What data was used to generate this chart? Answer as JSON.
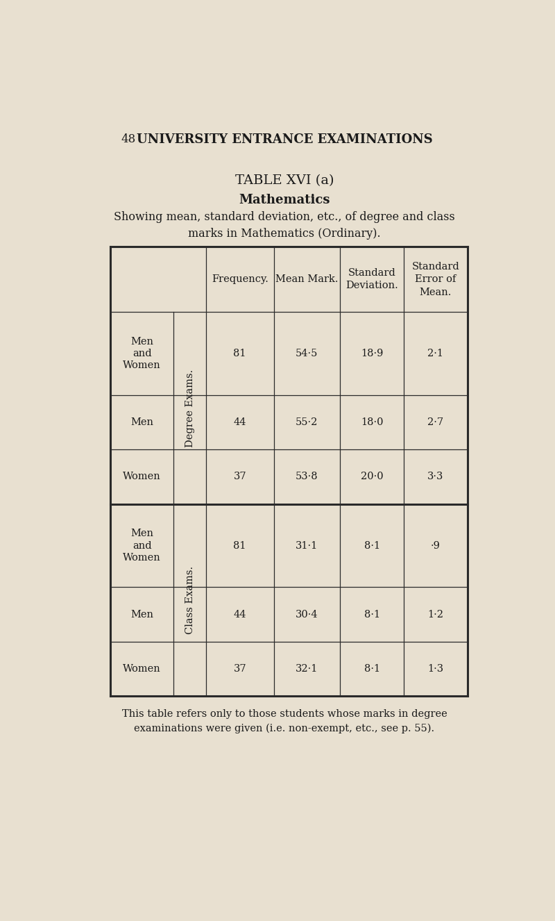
{
  "page_number": "48",
  "header": "UNIVERSITY ENTRANCE EXAMINATIONS",
  "title": "TABLE XVI (a)",
  "subtitle": "Mathematics",
  "description": "Showing mean, standard deviation, etc., of degree and class\nmarks in Mathematics (Ordinary).",
  "col_headers": [
    "Frequency.",
    "Mean Mark.",
    "Standard\nDeviation.",
    "Standard\nError of\nMean."
  ],
  "row_group1_label": "Degree Exams.",
  "row_group2_label": "Class Exams.",
  "rows": [
    {
      "group": "Degree Exams.",
      "label": "Men\nand\nWomen",
      "freq": "81",
      "mean": "54·5",
      "sd": "18·9",
      "se": "2·1"
    },
    {
      "group": "Degree Exams.",
      "label": "Men",
      "freq": "44",
      "mean": "55·2",
      "sd": "18·0",
      "se": "2·7"
    },
    {
      "group": "Degree Exams.",
      "label": "Women",
      "freq": "37",
      "mean": "53·8",
      "sd": "20·0",
      "se": "3·3"
    },
    {
      "group": "Class Exams.",
      "label": "Men\nand\nWomen",
      "freq": "81",
      "mean": "31·1",
      "sd": "8·1",
      "se": "·9"
    },
    {
      "group": "Class Exams.",
      "label": "Men",
      "freq": "44",
      "mean": "30·4",
      "sd": "8·1",
      "se": "1·2"
    },
    {
      "group": "Class Exams.",
      "label": "Women",
      "freq": "37",
      "mean": "32·1",
      "sd": "8·1",
      "se": "1·3"
    }
  ],
  "footnote": "This table refers only to those students whose marks in degree\nexaminations were given (i.e. non-exempt, etc., see p. 55).",
  "bg_color": "#e8e0d0",
  "text_color": "#1a1a1a",
  "line_color": "#2a2a2a"
}
